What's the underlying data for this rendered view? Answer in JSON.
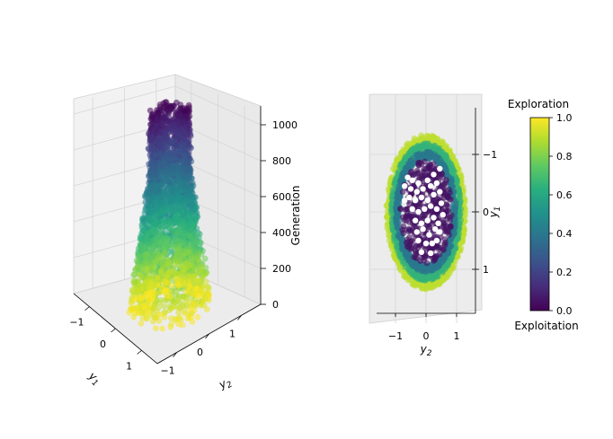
{
  "chart_data": [
    {
      "type": "scatter",
      "projection": "3d",
      "x_axis": {
        "label": "y_1",
        "ticks": [
          -1,
          0,
          1
        ],
        "range": [
          -1.6,
          1.6
        ]
      },
      "y_axis": {
        "label": "y_2",
        "ticks": [
          -1,
          0,
          1
        ],
        "range": [
          -1.6,
          1.6
        ]
      },
      "z_axis": {
        "label": "Generation",
        "ticks": [
          0,
          200,
          400,
          600,
          800,
          1000
        ],
        "range": [
          0,
          1100
        ]
      },
      "grid": true,
      "color_encoding": "exploration",
      "description_of_cloud": "Point cloud radius narrows with generation: about 1.3 at generation 0 down to about 0.65 above generation 700; color goes from yellow (exploration 1.0) at bottom to purple (exploration 0.0) at top",
      "radius_profile": [
        {
          "generation": 0,
          "radius": 1.3
        },
        {
          "generation": 200,
          "radius": 1.15
        },
        {
          "generation": 400,
          "radius": 0.95
        },
        {
          "generation": 600,
          "radius": 0.8
        },
        {
          "generation": 800,
          "radius": 0.68
        },
        {
          "generation": 1100,
          "radius": 0.65
        }
      ]
    },
    {
      "type": "scatter",
      "projection": "3d-top-view",
      "x_axis": {
        "label": "y_2",
        "ticks": [
          -1,
          0,
          1
        ],
        "range": [
          -1.8,
          1.8
        ]
      },
      "y_axis": {
        "label": "y_1",
        "ticks": [
          -1,
          0,
          1
        ],
        "range": [
          -1.7,
          1.7
        ],
        "inverted": true
      },
      "grid": true,
      "rings": [
        {
          "rx": 1.3,
          "ry": 1.35,
          "exploration": 0.9
        },
        {
          "rx": 1.15,
          "ry": 1.2,
          "exploration": 0.65
        },
        {
          "rx": 1.0,
          "ry": 1.05,
          "exploration": 0.4
        },
        {
          "rx": 0.85,
          "ry": 0.9,
          "exploration": 0.05
        }
      ],
      "highlight_points_color": "#ffffff",
      "highlight_points": [
        [
          -0.6,
          -0.6
        ],
        [
          -0.45,
          -0.55
        ],
        [
          -0.25,
          -0.5
        ],
        [
          0.05,
          -0.55
        ],
        [
          0.25,
          -0.65
        ],
        [
          0.45,
          -0.75
        ],
        [
          -0.7,
          -0.45
        ],
        [
          -0.5,
          -0.4
        ],
        [
          -0.3,
          -0.35
        ],
        [
          -0.1,
          -0.4
        ],
        [
          0.15,
          -0.45
        ],
        [
          0.35,
          -0.5
        ],
        [
          -0.55,
          -0.25
        ],
        [
          -0.35,
          -0.2
        ],
        [
          -0.15,
          -0.25
        ],
        [
          0.05,
          -0.2
        ],
        [
          0.25,
          -0.3
        ],
        [
          0.45,
          -0.35
        ],
        [
          -0.45,
          -0.05
        ],
        [
          -0.25,
          0.0
        ],
        [
          -0.05,
          -0.05
        ],
        [
          0.15,
          -0.1
        ],
        [
          0.35,
          -0.05
        ],
        [
          0.5,
          -0.15
        ],
        [
          -0.35,
          0.15
        ],
        [
          -0.15,
          0.2
        ],
        [
          0.05,
          0.15
        ],
        [
          0.25,
          0.1
        ],
        [
          0.4,
          0.2
        ],
        [
          0.55,
          0.05
        ],
        [
          -0.3,
          0.35
        ],
        [
          -0.1,
          0.3
        ],
        [
          0.1,
          0.4
        ],
        [
          0.3,
          0.3
        ],
        [
          0.45,
          0.35
        ],
        [
          -0.25,
          0.5
        ],
        [
          0.0,
          0.55
        ],
        [
          0.2,
          0.55
        ],
        [
          0.35,
          0.5
        ],
        [
          -0.15,
          0.7
        ],
        [
          0.15,
          0.72
        ],
        [
          -0.7,
          -0.2
        ]
      ]
    }
  ],
  "colorbar": {
    "title_top": "Exploration",
    "title_bottom": "Exploitation",
    "ticks": [
      "1.0",
      "0.8",
      "0.6",
      "0.4",
      "0.2",
      "0.0"
    ],
    "range": [
      0,
      1
    ],
    "colormap": "viridis"
  }
}
